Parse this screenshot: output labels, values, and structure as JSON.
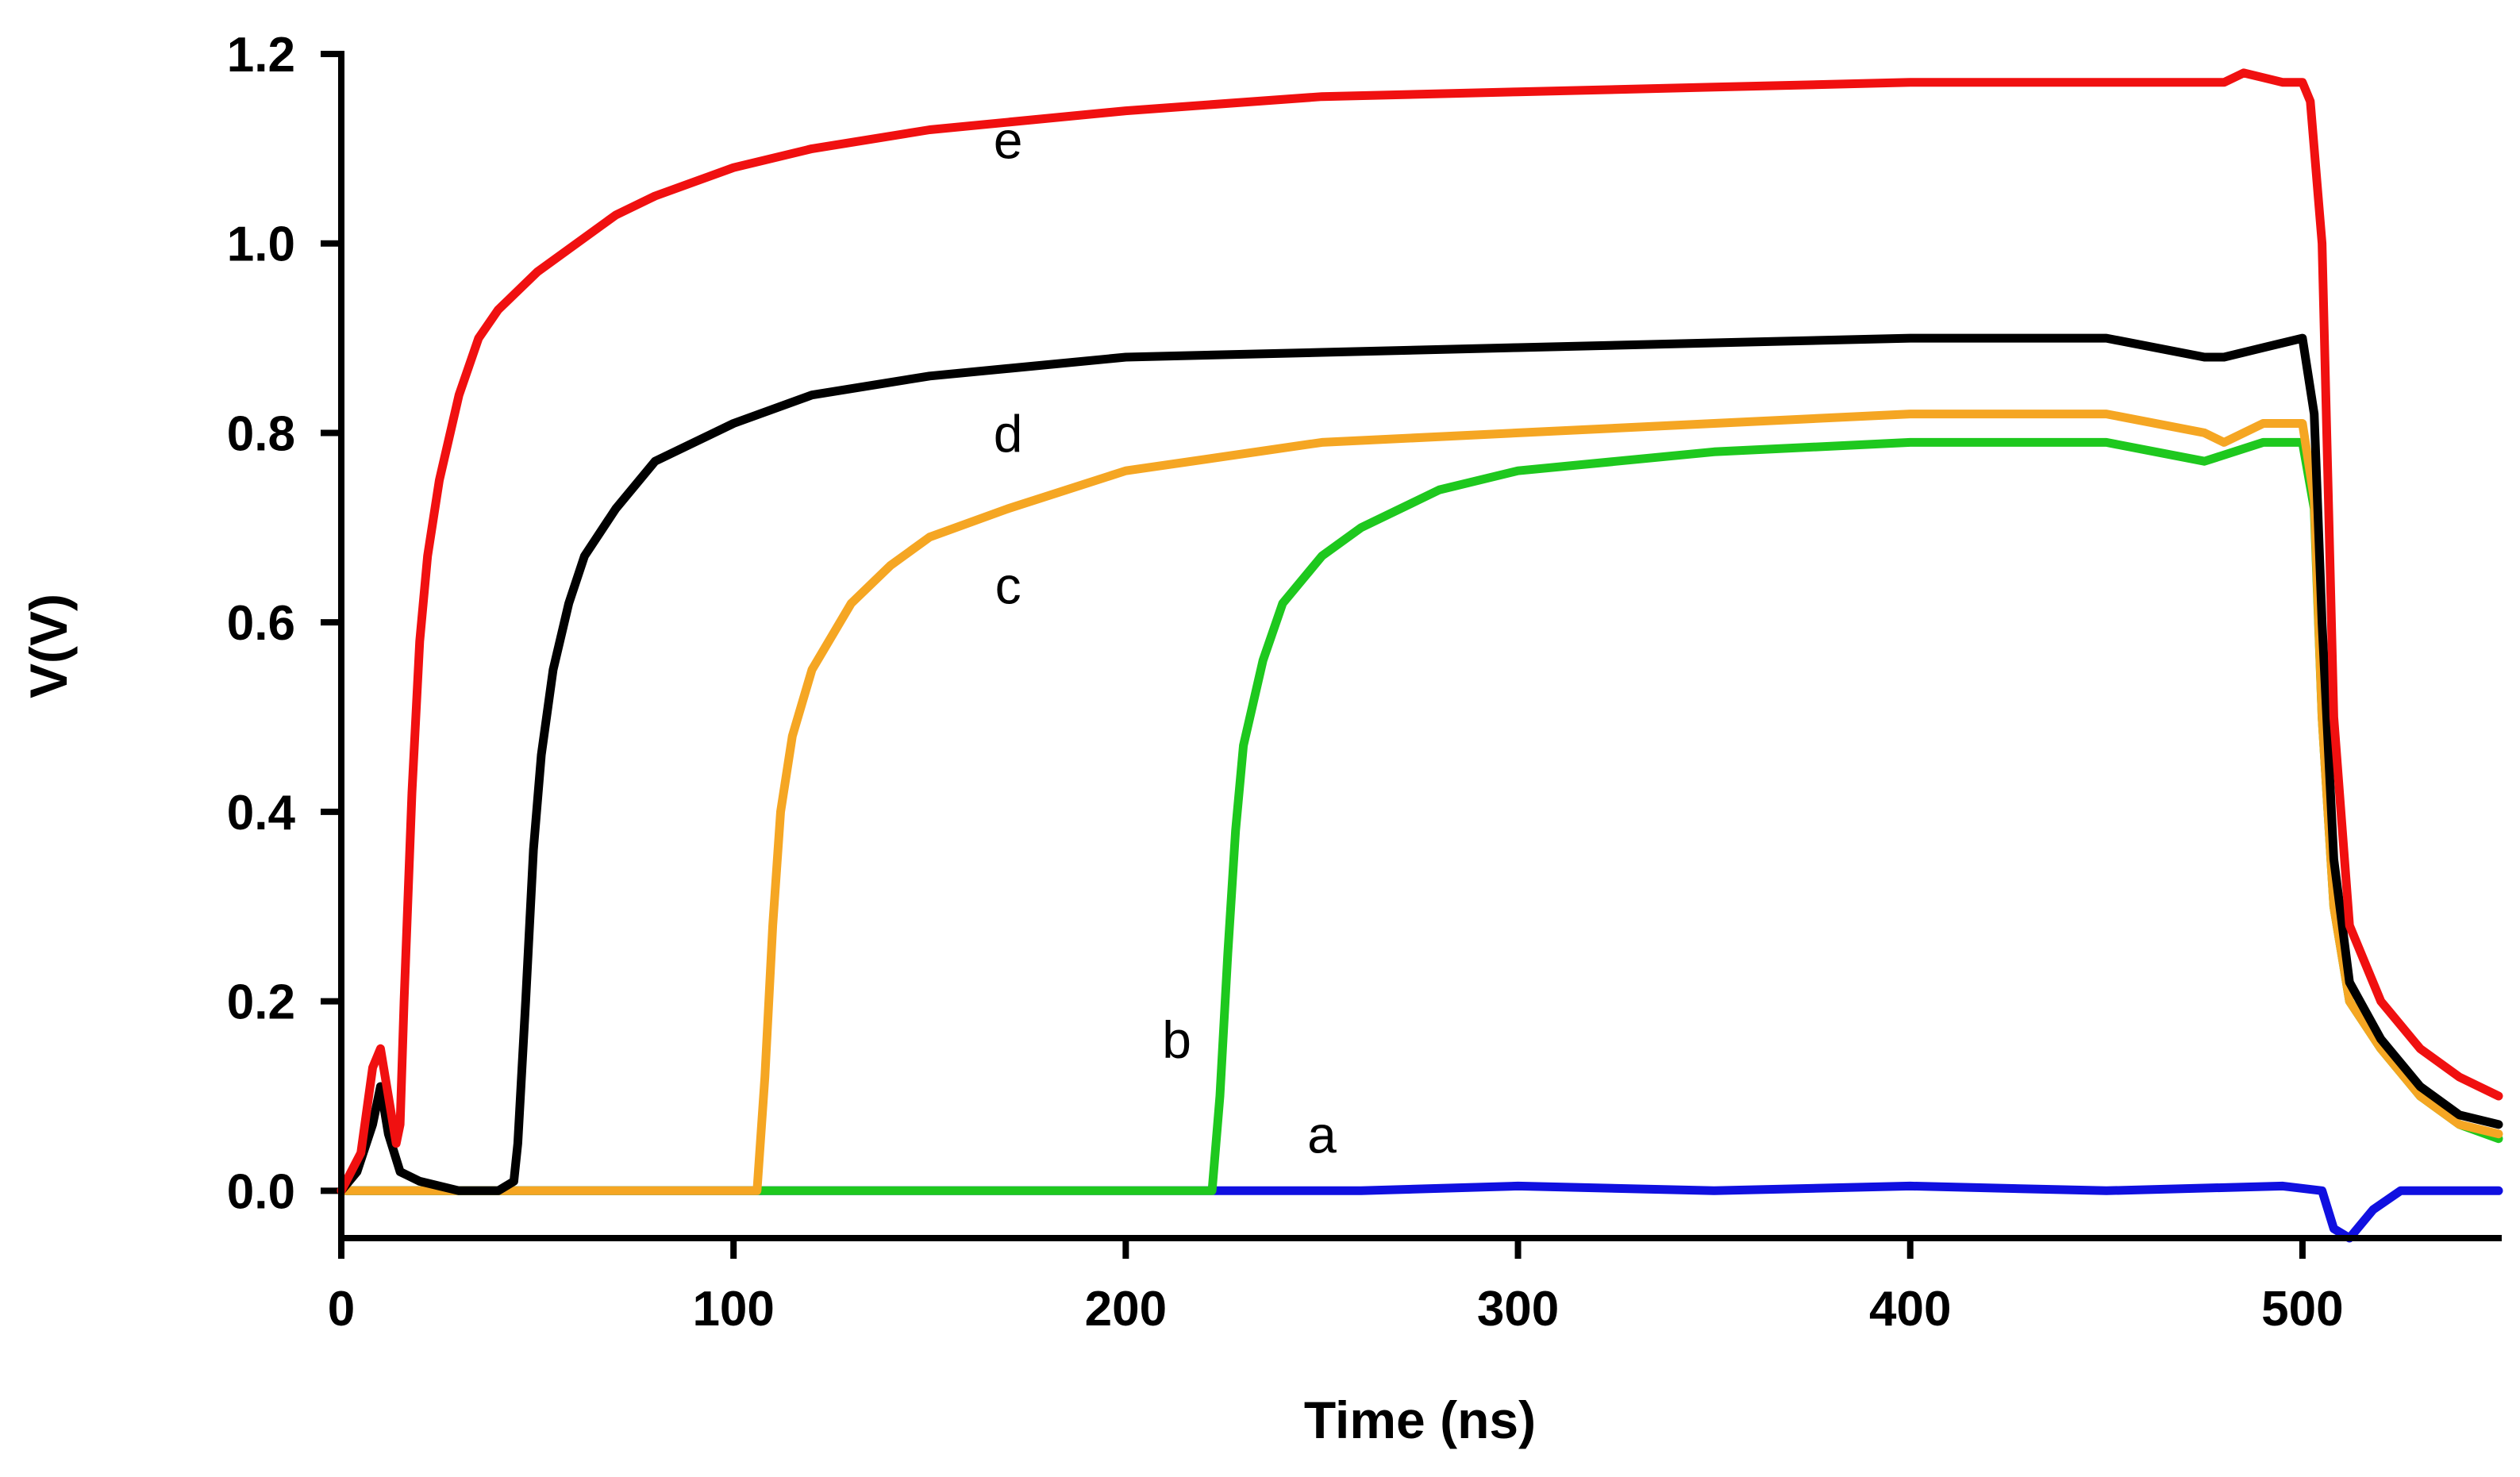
{
  "chart_data": {
    "type": "line",
    "title": "",
    "xlabel": "Time (ns)",
    "ylabel": "V(V)",
    "xlim": [
      0,
      550
    ],
    "ylim": [
      -0.05,
      1.2
    ],
    "xticks": [
      0,
      100,
      200,
      300,
      400,
      500
    ],
    "xtick_labels": [
      "0",
      "100",
      "200",
      "300",
      "400",
      "500"
    ],
    "yticks": [
      0.0,
      0.2,
      0.4,
      0.6,
      0.8,
      1.0,
      1.2
    ],
    "ytick_labels": [
      "0.0",
      "0.2",
      "0.4",
      "0.6",
      "0.8",
      "1.0",
      "1.2"
    ],
    "grid": false,
    "legend": "none",
    "series": [
      {
        "name": "a",
        "color": "#1010e0",
        "x": [
          0,
          20,
          50,
          100,
          150,
          200,
          222,
          260,
          300,
          350,
          400,
          450,
          495,
          505,
          508,
          512,
          518,
          525,
          535,
          550
        ],
        "y": [
          0.0,
          0.0,
          0.0,
          0.0,
          0.0,
          0.0,
          0.0,
          0.0,
          0.005,
          0.0,
          0.005,
          0.0,
          0.005,
          0.0,
          -0.04,
          -0.05,
          -0.02,
          0.0,
          0.0,
          0.0
        ]
      },
      {
        "name": "b",
        "color": "#1ec81e",
        "x": [
          0,
          100,
          150,
          200,
          221,
          222,
          224,
          226,
          228,
          230,
          235,
          240,
          250,
          260,
          280,
          300,
          350,
          400,
          450,
          475,
          490,
          500,
          503,
          505,
          508,
          512,
          520,
          530,
          540,
          550
        ],
        "y": [
          0.0,
          0.0,
          0.0,
          0.0,
          0.0,
          0.0,
          0.1,
          0.25,
          0.38,
          0.47,
          0.56,
          0.62,
          0.67,
          0.7,
          0.74,
          0.76,
          0.78,
          0.79,
          0.79,
          0.77,
          0.79,
          0.79,
          0.72,
          0.5,
          0.3,
          0.2,
          0.15,
          0.1,
          0.07,
          0.055
        ]
      },
      {
        "name": "c",
        "color": "#f5a623",
        "x": [
          0,
          50,
          100,
          105,
          106,
          108,
          110,
          112,
          115,
          120,
          130,
          140,
          150,
          170,
          200,
          250,
          300,
          350,
          400,
          450,
          475,
          480,
          490,
          500,
          503,
          505,
          508,
          512,
          520,
          530,
          540,
          550
        ],
        "y": [
          0.0,
          0.0,
          0.0,
          0.0,
          0.0,
          0.12,
          0.28,
          0.4,
          0.48,
          0.55,
          0.62,
          0.66,
          0.69,
          0.72,
          0.76,
          0.79,
          0.8,
          0.81,
          0.82,
          0.82,
          0.8,
          0.79,
          0.81,
          0.81,
          0.73,
          0.5,
          0.3,
          0.2,
          0.15,
          0.1,
          0.07,
          0.06
        ]
      },
      {
        "name": "d",
        "color": "#000000",
        "x": [
          0,
          4,
          8,
          10,
          12,
          15,
          20,
          30,
          40,
          44,
          45,
          47,
          49,
          51,
          54,
          58,
          62,
          70,
          80,
          100,
          120,
          150,
          200,
          250,
          300,
          350,
          400,
          450,
          475,
          480,
          490,
          500,
          503,
          505,
          508,
          512,
          520,
          530,
          540,
          550
        ],
        "y": [
          0.0,
          0.02,
          0.07,
          0.11,
          0.06,
          0.02,
          0.01,
          0.0,
          0.0,
          0.01,
          0.05,
          0.2,
          0.36,
          0.46,
          0.55,
          0.62,
          0.67,
          0.72,
          0.77,
          0.81,
          0.84,
          0.86,
          0.88,
          0.885,
          0.89,
          0.895,
          0.9,
          0.9,
          0.88,
          0.88,
          0.89,
          0.9,
          0.82,
          0.6,
          0.35,
          0.22,
          0.16,
          0.11,
          0.08,
          0.07
        ]
      },
      {
        "name": "e",
        "color": "#f01010",
        "x": [
          0,
          5,
          8,
          10,
          12,
          14,
          15,
          16,
          18,
          20,
          22,
          25,
          30,
          35,
          40,
          50,
          60,
          70,
          80,
          100,
          120,
          150,
          200,
          250,
          300,
          350,
          400,
          450,
          475,
          480,
          485,
          490,
          495,
          500,
          502,
          505,
          508,
          512,
          520,
          530,
          540,
          550
        ],
        "y": [
          0.0,
          0.04,
          0.13,
          0.15,
          0.1,
          0.05,
          0.07,
          0.2,
          0.42,
          0.58,
          0.67,
          0.75,
          0.84,
          0.9,
          0.93,
          0.97,
          1.0,
          1.03,
          1.05,
          1.08,
          1.1,
          1.12,
          1.14,
          1.155,
          1.16,
          1.165,
          1.17,
          1.17,
          1.17,
          1.17,
          1.18,
          1.175,
          1.17,
          1.17,
          1.15,
          1.0,
          0.5,
          0.28,
          0.2,
          0.15,
          0.12,
          0.1
        ]
      }
    ],
    "annotations": [
      {
        "text": "e",
        "x": 170,
        "y": 1.09
      },
      {
        "text": "d",
        "x": 170,
        "y": 0.78
      },
      {
        "text": "c",
        "x": 170,
        "y": 0.62
      },
      {
        "text": "b",
        "x": 213,
        "y": 0.14
      },
      {
        "text": "a",
        "x": 250,
        "y": 0.04
      }
    ]
  }
}
